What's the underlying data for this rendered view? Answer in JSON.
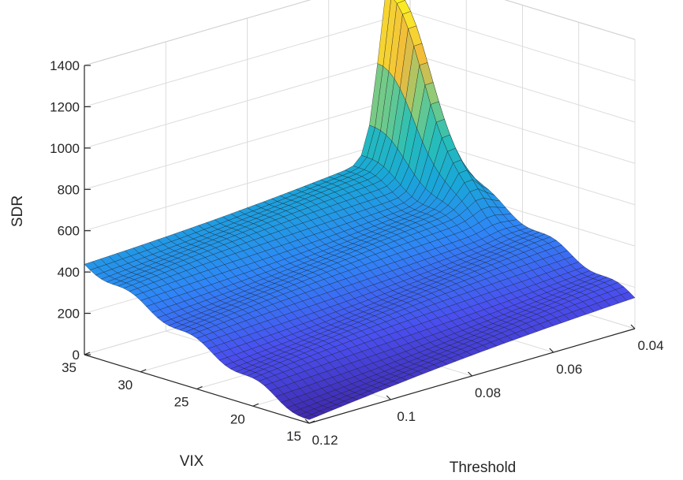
{
  "chart_data": {
    "type": "surface",
    "title": "",
    "xlabel": "Threshold",
    "ylabel": "VIX",
    "zlabel": "SDR",
    "xlim": [
      0.04,
      0.12
    ],
    "ylim": [
      15,
      35
    ],
    "zlim": [
      0,
      1400
    ],
    "x_ticks": [
      0.04,
      0.06,
      0.08,
      0.1,
      0.12
    ],
    "x_tick_labels": [
      "0.04",
      "0.06",
      "0.08",
      "0.1",
      "0.12"
    ],
    "y_ticks": [
      15,
      20,
      25,
      30,
      35
    ],
    "y_tick_labels": [
      "15",
      "20",
      "25",
      "30",
      "35"
    ],
    "z_ticks": [
      0,
      200,
      400,
      600,
      800,
      1000,
      1200,
      1400
    ],
    "z_tick_labels": [
      "0",
      "200",
      "400",
      "600",
      "800",
      "1000",
      "1200",
      "1400"
    ],
    "grid": true,
    "colormap": "parula",
    "colormap_stops": [
      "#3e26a8",
      "#4a4ff0",
      "#2e87f7",
      "#19a7d7",
      "#28bfb7",
      "#84cc7e",
      "#f1b93b",
      "#f9e42d",
      "#f9fb15"
    ],
    "corner_values": [
      {
        "x": 0.04,
        "y": 15,
        "z": 150
      },
      {
        "x": 0.04,
        "y": 35,
        "z": 560
      },
      {
        "x": 0.12,
        "y": 35,
        "z": 440
      },
      {
        "x": 0.12,
        "y": 15,
        "z": 15
      }
    ],
    "peak": {
      "x": 0.045,
      "y": 35,
      "z": 1430
    },
    "mesh_resolution": [
      40,
      40
    ]
  }
}
